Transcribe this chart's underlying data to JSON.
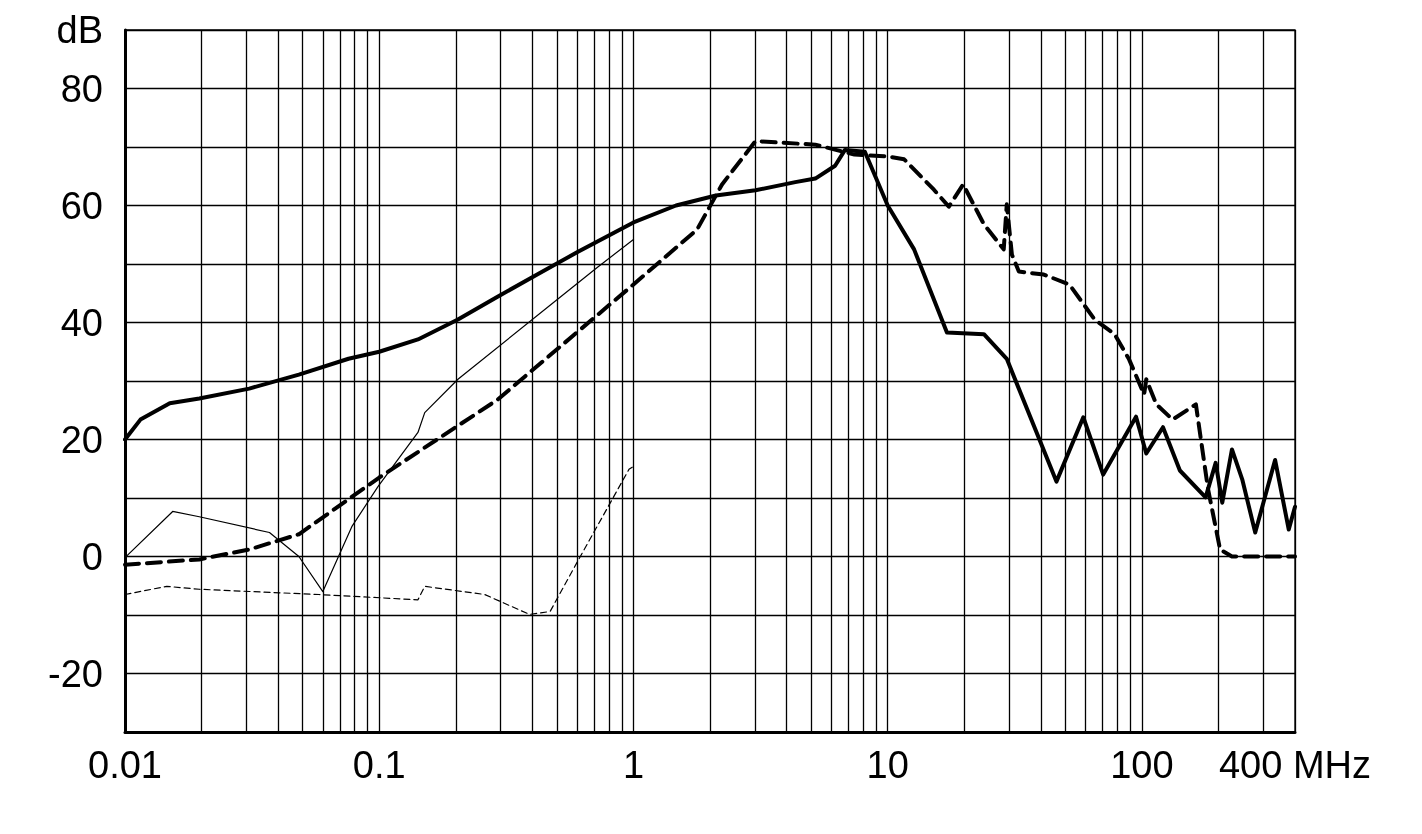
{
  "chart_data": {
    "type": "line",
    "x": [
      0.01,
      0.0115,
      0.015,
      0.0196,
      0.0308,
      0.0483,
      0.0757,
      0.1,
      0.142,
      0.204,
      0.292,
      0.418,
      0.6,
      1,
      1.47,
      2.11,
      3.02,
      4.33,
      5.19,
      6.21,
      6.79,
      8.13,
      10,
      12.7,
      17.1,
      23.9,
      29.4,
      46.1,
      58.8,
      70.4,
      94.8,
      104,
      121,
      141,
      178,
      195,
      207,
      226,
      248,
      279,
      334,
      378,
      400
    ],
    "series": [
      {
        "color": "#000000",
        "line_style": "solid",
        "values": [
          20,
          23.4,
          26.2,
          27,
          28.7,
          31.1,
          33.8,
          35,
          37.1,
          40.5,
          44.4,
          48.2,
          52,
          57.1,
          60,
          61.7,
          62.6,
          64,
          64.6,
          66.8,
          69.5,
          69.2,
          60,
          52.5,
          38.3,
          38,
          33.8,
          12.8,
          23.8,
          14,
          23.9,
          17.6,
          22.1,
          14.7,
          10.1,
          16,
          9.2,
          18.3,
          13.2,
          4.1,
          16.5,
          4.6,
          8.5
        ]
      },
      {
        "color": "#000000",
        "line_style": "dashed",
        "x": [
          0.01,
          0.0196,
          0.0308,
          0.0483,
          0.1,
          0.292,
          1,
          1.78,
          2.23,
          3.02,
          5.19,
          7.4,
          10,
          11.6,
          15.2,
          17.4,
          19.8,
          23.9,
          28.6,
          29.4,
          30.8,
          32.8,
          41.1,
          51.8,
          65.2,
          78.1,
          89,
          102,
          104,
          114,
          132,
          163,
          182,
          203,
          226,
          400
        ],
        "values": [
          -1.4,
          -0.5,
          1.2,
          3.8,
          13.5,
          26.8,
          46.5,
          55.9,
          63.6,
          71,
          70.4,
          68.7,
          68.4,
          67.9,
          62.7,
          59.8,
          63.6,
          56.8,
          52.5,
          60.2,
          51.6,
          48.7,
          48.2,
          46.5,
          40.5,
          38,
          33.7,
          27.7,
          30.3,
          26,
          23.4,
          26,
          11.5,
          1.2,
          0,
          0
        ]
      },
      {
        "color": "#000000",
        "line_style": "solid",
        "x": [
          0.01,
          0.0154,
          0.0196,
          0.037,
          0.0483,
          0.06,
          0.078,
          0.099,
          0.142,
          0.151,
          0.204,
          0.5,
          0.72,
          1
        ],
        "values": [
          -0.2,
          7.7,
          6.8,
          4.1,
          0,
          -6,
          5.1,
          12,
          21.2,
          24.6,
          30.3,
          43.9,
          49.4,
          54.2
        ]
      },
      {
        "color": "#000000",
        "line_style": "dashed",
        "x": [
          0.01,
          0.0146,
          0.0196,
          0.058,
          0.142,
          0.151,
          0.26,
          0.39,
          0.47,
          0.6,
          0.96,
          1
        ],
        "values": [
          -6.5,
          -5.1,
          -5.6,
          -6.5,
          -7.4,
          -5.1,
          -6.5,
          -9.9,
          -9.4,
          -1,
          14.9,
          15.4
        ]
      }
    ],
    "log": "x",
    "xlim": [
      0.01,
      400
    ],
    "xticks": [
      0.01,
      {
        "value": 0.02,
        "label": null
      },
      {
        "value": 0.03,
        "label": null
      },
      {
        "value": 0.04,
        "label": null
      },
      {
        "value": 0.05,
        "label": null
      },
      {
        "value": 0.06,
        "label": null
      },
      {
        "value": 0.07,
        "label": null
      },
      {
        "value": 0.08,
        "label": null
      },
      {
        "value": 0.09,
        "label": null
      },
      0.1,
      {
        "value": 0.2,
        "label": null
      },
      {
        "value": 0.3,
        "label": null
      },
      {
        "value": 0.4,
        "label": null
      },
      {
        "value": 0.5,
        "label": null
      },
      {
        "value": 0.6,
        "label": null
      },
      {
        "value": 0.7,
        "label": null
      },
      {
        "value": 0.8,
        "label": null
      },
      {
        "value": 0.9,
        "label": null
      },
      1,
      {
        "value": 2,
        "label": null
      },
      {
        "value": 3,
        "label": null
      },
      {
        "value": 4,
        "label": null
      },
      {
        "value": 5,
        "label": null
      },
      {
        "value": 6,
        "label": null
      },
      {
        "value": 7,
        "label": null
      },
      {
        "value": 8,
        "label": null
      },
      {
        "value": 9,
        "label": null
      },
      10,
      {
        "value": 20,
        "label": null
      },
      {
        "value": 30,
        "label": null
      },
      {
        "value": 40,
        "label": null
      },
      {
        "value": 50,
        "label": null
      },
      {
        "value": 60,
        "label": null
      },
      {
        "value": 70,
        "label": null
      },
      {
        "value": 80,
        "label": null
      },
      {
        "value": 90,
        "label": null
      },
      100,
      {
        "value": 200,
        "label": null
      },
      {
        "value": 300,
        "label": null
      },
      {
        "value": 400,
        "label": "400 MHz"
      }
    ],
    "ylim": [
      -30,
      90
    ],
    "yticks": [
      {
        "value": -30,
        "label": null
      },
      -20,
      {
        "value": -10,
        "label": null
      },
      0,
      {
        "value": 10,
        "label": null
      },
      20,
      {
        "value": 30,
        "label": null
      },
      40,
      {
        "value": 50,
        "label": null
      },
      60,
      {
        "value": 70,
        "label": null
      },
      80,
      {
        "value": 90,
        "label": "dB"
      }
    ],
    "grid": true,
    "marker": "none"
  }
}
